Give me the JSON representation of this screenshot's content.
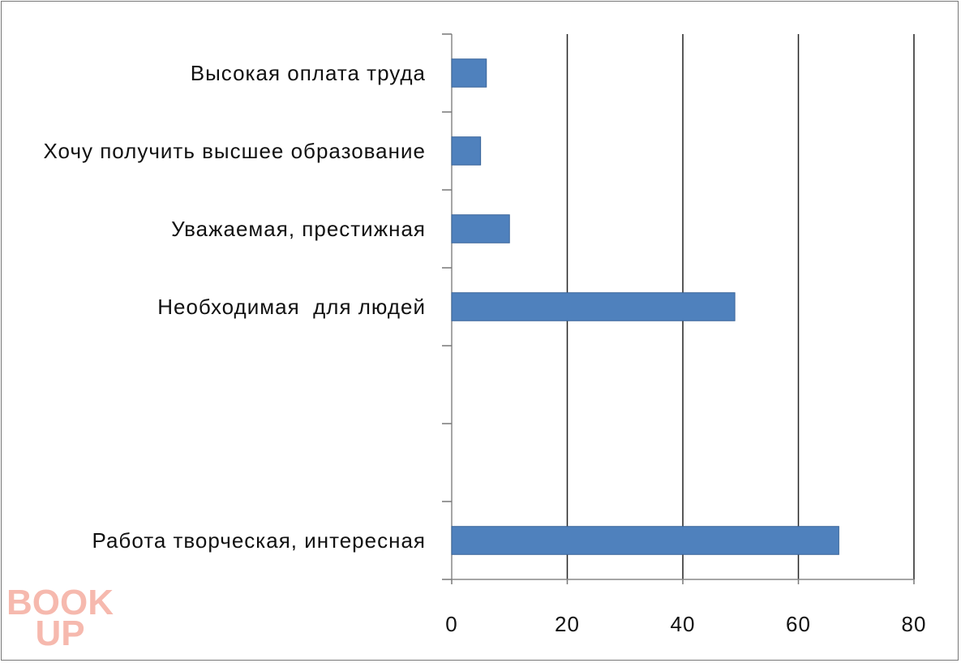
{
  "chart_data": {
    "type": "bar",
    "orientation": "horizontal",
    "categories": [
      "Высокая оплата труда",
      "Хочу получить высшее образование",
      "Уважаемая, престижная",
      "Необходимая  для людей",
      null,
      null,
      "Работа творческая, интересная"
    ],
    "values": [
      6,
      5,
      10,
      49,
      null,
      null,
      67
    ],
    "color": "#4f81bd",
    "xlim": [
      0,
      80
    ],
    "xticks": [
      0,
      20,
      40,
      60,
      80
    ],
    "grid": true
  },
  "watermark": {
    "line1": "BOOK",
    "line2": "UP"
  }
}
